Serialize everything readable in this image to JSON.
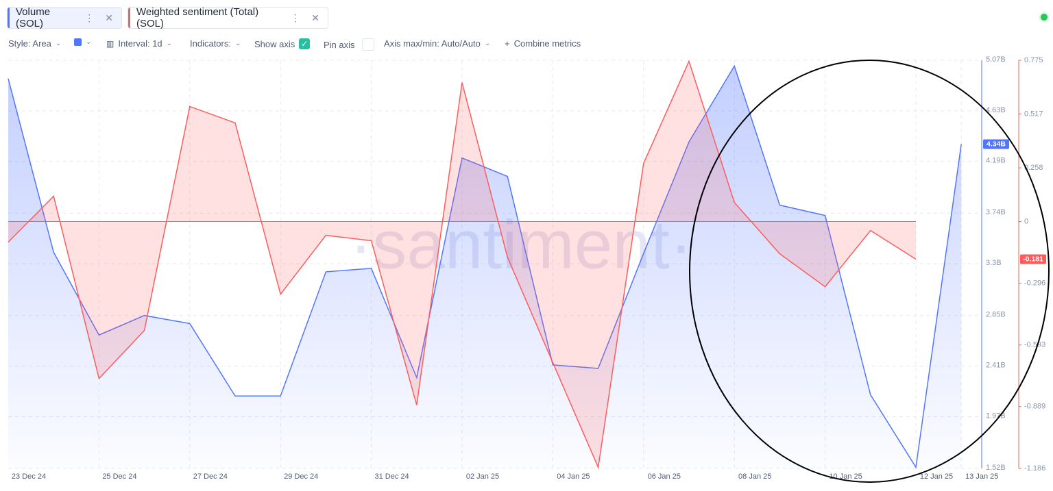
{
  "tabs": [
    "Volume (SOL)",
    "Weighted sentiment (Total) (SOL)"
  ],
  "toolbar": [
    "Style: Area",
    "Interval: 1d",
    "Indicators:",
    "Show axis",
    "Pin axis",
    "Axis max/min: Auto/Auto",
    "Combine metrics"
  ],
  "chart_data": {
    "type": "area",
    "watermark": "·santiment·",
    "categories": [
      "23 Dec 24",
      null,
      "25 Dec 24",
      null,
      "27 Dec 24",
      null,
      "29 Dec 24",
      null,
      "31 Dec 24",
      null,
      "02 Jan 25",
      null,
      "04 Jan 25",
      null,
      "06 Jan 25",
      null,
      "08 Jan 25",
      null,
      "10 Jan 25",
      null,
      "12 Jan 25",
      "13 Jan 25"
    ],
    "series": [
      {
        "name": "Volume (SOL)",
        "color": "#5275ff",
        "axis": "y",
        "values": [
          4.91,
          3.4,
          2.68,
          2.85,
          2.78,
          2.15,
          2.15,
          3.23,
          3.26,
          2.31,
          4.22,
          4.06,
          2.42,
          2.39,
          3.39,
          4.36,
          5.02,
          3.81,
          3.72,
          2.16,
          1.53,
          4.34
        ],
        "value_labels": [
          null,
          null,
          null,
          null,
          null,
          null,
          null,
          null,
          null,
          null,
          null,
          null,
          null,
          null,
          null,
          null,
          null,
          null,
          null,
          null,
          null,
          "4.34B"
        ]
      },
      {
        "name": "Weighted sentiment (Total) (SOL)",
        "color": "#ff5b5b",
        "axis": "y2",
        "values": [
          -0.099,
          0.122,
          -0.754,
          -0.523,
          0.553,
          0.474,
          -0.349,
          -0.066,
          -0.092,
          -0.882,
          0.668,
          -0.171,
          -0.678,
          -1.181,
          0.28,
          0.77,
          0.092,
          -0.155,
          -0.313,
          -0.043,
          -0.181,
          null
        ],
        "value_labels": [
          null,
          null,
          null,
          null,
          null,
          null,
          null,
          null,
          null,
          null,
          null,
          null,
          null,
          null,
          null,
          null,
          null,
          null,
          null,
          null,
          "-0.181",
          null
        ]
      }
    ],
    "ylim": [
      1.52,
      5.07
    ],
    "yticks": [
      {
        "value": 5.07,
        "label": "5.07B"
      },
      {
        "value": 4.63,
        "label": "4.63B"
      },
      {
        "value": 4.19,
        "label": "4.19B"
      },
      {
        "value": 3.74,
        "label": "3.74B"
      },
      {
        "value": 3.3,
        "label": "3.3B"
      },
      {
        "value": 2.85,
        "label": "2.85B"
      },
      {
        "value": 2.41,
        "label": "2.41B"
      },
      {
        "value": 1.97,
        "label": "1.97B"
      },
      {
        "value": 1.52,
        "label": "1.52B"
      }
    ],
    "y2lim": [
      -1.186,
      0.775
    ],
    "y2ticks": [
      0.775,
      0.517,
      0.258,
      0,
      -0.296,
      -0.593,
      -0.889,
      -1.186
    ],
    "grid": true
  }
}
